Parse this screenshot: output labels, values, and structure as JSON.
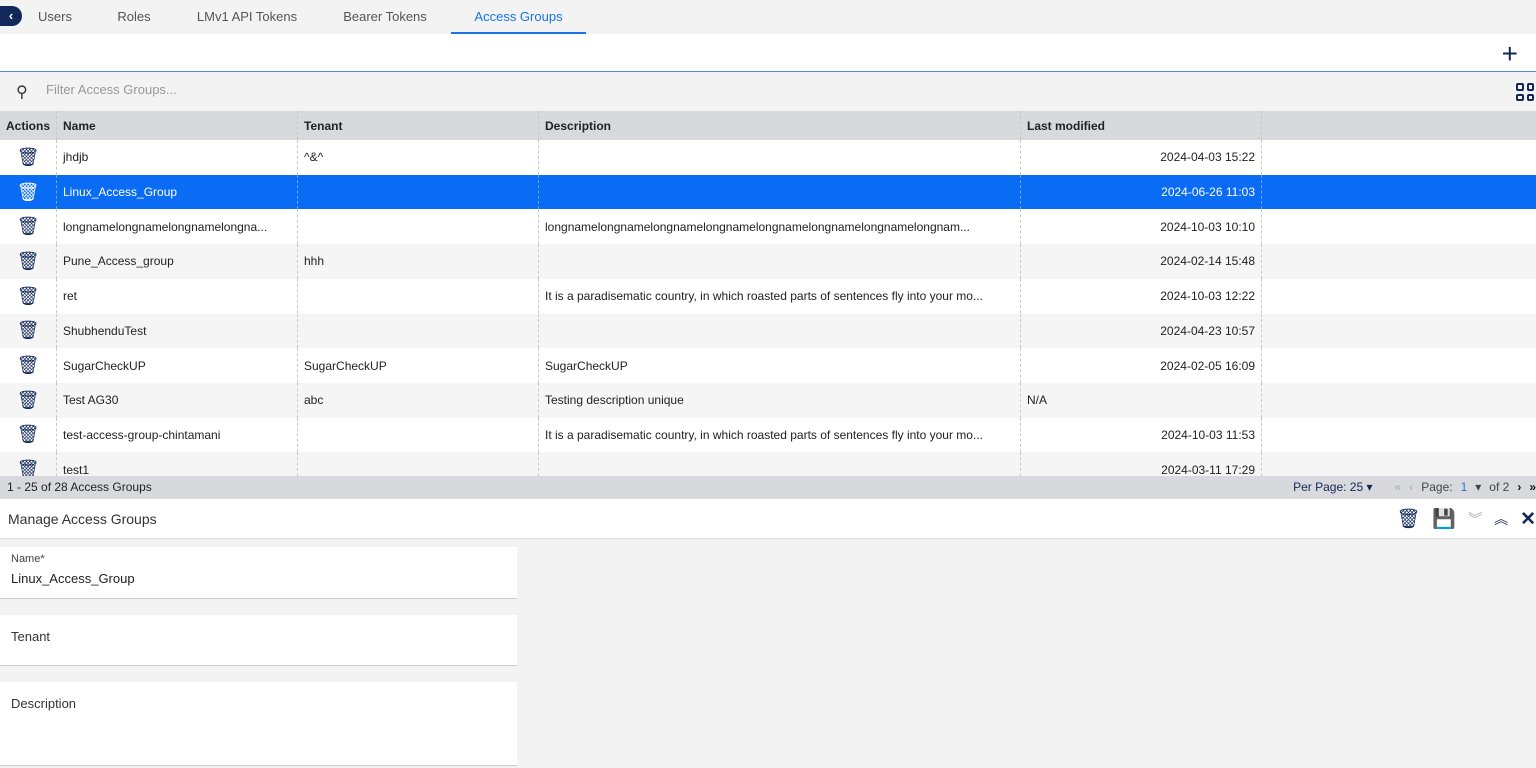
{
  "tabs": [
    "Users",
    "Roles",
    "LMv1 API Tokens",
    "Bearer Tokens",
    "Access Groups"
  ],
  "active_tab": "Access Groups",
  "filter": {
    "placeholder": "Filter Access Groups..."
  },
  "columns": [
    "Actions",
    "Name",
    "Tenant",
    "Description",
    "Last modified"
  ],
  "rows": [
    {
      "name": "jhdjb",
      "tenant": "^&^",
      "description": "",
      "modified": "2024-04-03 15:22"
    },
    {
      "name": "Linux_Access_Group",
      "tenant": "",
      "description": "",
      "modified": "2024-06-26 11:03",
      "selected": true
    },
    {
      "name": "longnamelongnamelongnamelongna...",
      "tenant": "",
      "description": "longnamelongnamelongnamelongnamelongnamelongnamelongnamelongnam...",
      "modified": "2024-10-03 10:10"
    },
    {
      "name": "Pune_Access_group",
      "tenant": "hhh",
      "description": "",
      "modified": "2024-02-14 15:48"
    },
    {
      "name": "ret",
      "tenant": "",
      "description": "It is a paradisematic country, in which roasted parts of sentences fly into your mo...",
      "modified": "2024-10-03 12:22"
    },
    {
      "name": "ShubhenduTest",
      "tenant": "",
      "description": "",
      "modified": "2024-04-23 10:57"
    },
    {
      "name": "SugarCheckUP",
      "tenant": "SugarCheckUP",
      "description": "SugarCheckUP",
      "modified": "2024-02-05 16:09"
    },
    {
      "name": "Test AG30",
      "tenant": "abc",
      "description": "Testing description unique",
      "modified": "N/A"
    },
    {
      "name": "test-access-group-chintamani",
      "tenant": "",
      "description": "It is a paradisematic country, in which roasted parts of sentences fly into your mo...",
      "modified": "2024-10-03 11:53"
    },
    {
      "name": "test1",
      "tenant": "",
      "description": "",
      "modified": "2024-03-11 17:29"
    }
  ],
  "footer": {
    "count": "1 - 25 of 28 Access Groups",
    "per_page": "Per Page: 25",
    "page_label": "Page:",
    "page": "1",
    "of": "of 2"
  },
  "panel": {
    "title": "Manage Access Groups",
    "name_label": "Name*",
    "name_value": "Linux_Access_Group",
    "tenant_label": "Tenant",
    "description_label": "Description"
  },
  "colors": {
    "accent": "#1a73e8",
    "selected": "#0a6cf5",
    "icon": "#12285a"
  }
}
